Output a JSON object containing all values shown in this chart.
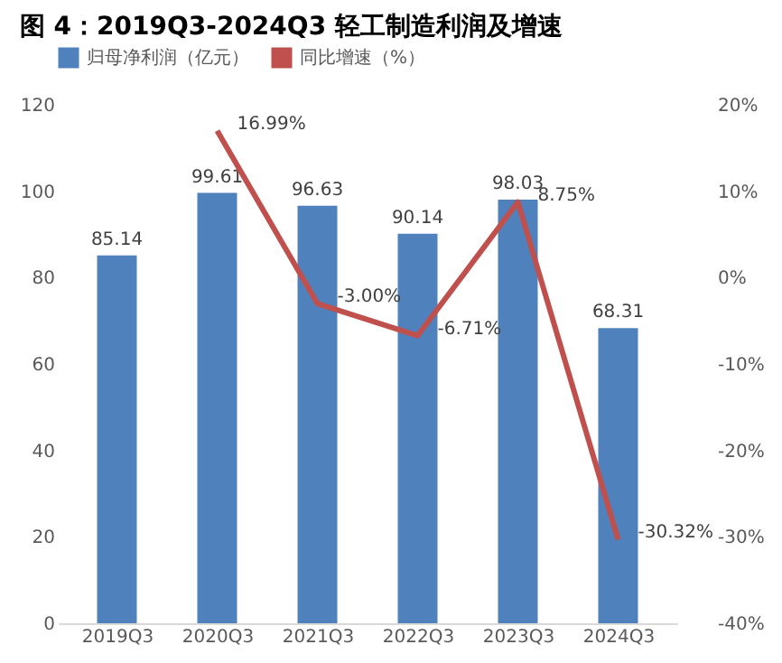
{
  "chart_data": {
    "type": "bar",
    "title": "图 4：2019Q3-2024Q3 轻工制造利润及增速",
    "categories": [
      "2019Q3",
      "2020Q3",
      "2021Q3",
      "2022Q3",
      "2023Q3",
      "2024Q3"
    ],
    "series": [
      {
        "name": "归母净利润（亿元）",
        "color": "#4f81bd",
        "values": [
          85.14,
          99.61,
          96.63,
          90.14,
          98.03,
          68.31
        ],
        "value_labels": [
          "85.14",
          "99.61",
          "96.63",
          "90.14",
          "98.03",
          "68.31"
        ]
      },
      {
        "name": "同比增速（%）",
        "type": "line",
        "axis": "y2",
        "color": "#c0504d",
        "values": [
          null,
          16.99,
          -3.0,
          -6.71,
          8.75,
          -30.32
        ],
        "value_labels": [
          null,
          "16.99%",
          "-3.00%",
          "-6.71%",
          "8.75%",
          "-30.32%"
        ]
      }
    ],
    "ylim": [
      0,
      120
    ],
    "yticks": [
      0,
      20,
      40,
      60,
      80,
      100,
      120
    ],
    "y2lim": [
      -40,
      20
    ],
    "y2ticks": [
      {
        "value": -40,
        "label": "-40%"
      },
      {
        "value": -30,
        "label": "-30%"
      },
      {
        "value": -20,
        "label": "-20%"
      },
      {
        "value": -10,
        "label": "-10%"
      },
      {
        "value": 0,
        "label": "0%"
      },
      {
        "value": 10,
        "label": "10%"
      },
      {
        "value": 20,
        "label": "20%"
      }
    ],
    "grid": false,
    "legend": "top",
    "marker": "none",
    "line_style": "solid"
  }
}
